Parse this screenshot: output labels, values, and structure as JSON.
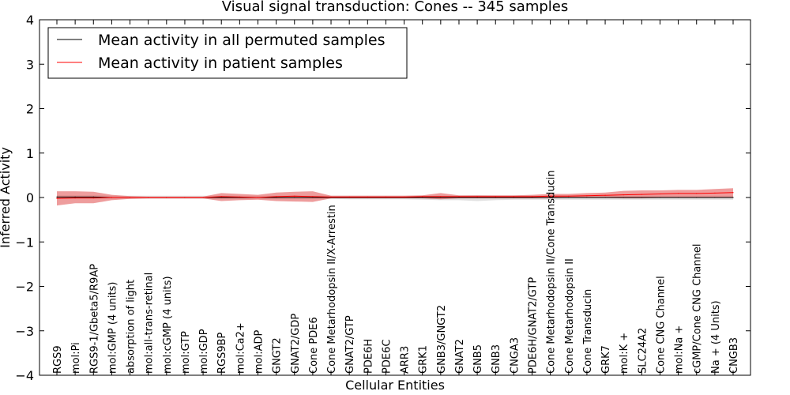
{
  "chart_data": {
    "type": "line",
    "title": "Visual signal transduction: Cones -- 345 samples",
    "xlabel": "Cellular Entities",
    "ylabel": "Inferred Activity",
    "ylim": [
      -4,
      4
    ],
    "yticks": [
      -4,
      -3,
      -2,
      -1,
      0,
      1,
      2,
      3,
      4
    ],
    "ytick_labels": [
      "−4",
      "−3",
      "−2",
      "−1",
      "0",
      "1",
      "2",
      "3",
      "4"
    ],
    "legend_position": "top-left",
    "categories": [
      "RGS9",
      "mol:Pi",
      "RGS9-1/Gbeta5/R9AP",
      "mol:GMP (4 units)",
      "absorption of light",
      "mol:all-trans-retinal",
      "mol:cGMP (4 units)",
      "mol:GTP",
      "mol:GDP",
      "RGS9BP",
      "mol:Ca2+",
      "mol:ADP",
      "GNGT2",
      "GNAT2/GDP",
      "Cone PDE6",
      "Cone Metarhodopsin II/X-Arrestin",
      "GNAT2/GTP",
      "PDE6H",
      "PDE6C",
      "ARR3",
      "GRK1",
      "GNB3/GNGT2",
      "GNAT2",
      "GNB5",
      "GNB3",
      "CNGA3",
      "PDE6H/GNAT2/GTP",
      "Cone Metarhodopsin II/Cone Transducin",
      "Cone Metarhodopsin II",
      "Cone Transducin",
      "GRK7",
      "mol:K +",
      "SLC24A2",
      "Cone CNG Channel",
      "mol:Na +",
      "cGMP/Cone CNG Channel",
      "Na + (4 Units)",
      "CNGB3"
    ],
    "series": [
      {
        "name": "Mean activity in all permuted samples",
        "color": "#000000",
        "band_color": "#c8c8c8",
        "values": [
          0.01,
          0.01,
          0.01,
          0.0,
          0.0,
          0.0,
          0.0,
          0.0,
          0.0,
          0.0,
          0.0,
          0.0,
          0.0,
          0.0,
          0.0,
          0.0,
          0.0,
          0.0,
          0.0,
          0.0,
          0.0,
          0.0,
          0.0,
          0.0,
          0.0,
          0.0,
          0.0,
          0.0,
          0.0,
          0.0,
          0.0,
          0.0,
          0.0,
          0.0,
          0.0,
          0.0,
          0.0,
          0.0
        ],
        "lower": [
          -0.03,
          -0.03,
          -0.03,
          -0.03,
          -0.03,
          -0.03,
          -0.03,
          -0.03,
          -0.03,
          -0.03,
          -0.03,
          -0.03,
          -0.03,
          -0.03,
          -0.03,
          -0.03,
          -0.04,
          -0.04,
          -0.04,
          -0.04,
          -0.05,
          -0.06,
          -0.06,
          -0.08,
          -0.06,
          -0.05,
          -0.05,
          -0.05,
          -0.05,
          -0.05,
          -0.05,
          -0.05,
          -0.05,
          -0.05,
          -0.05,
          -0.05,
          -0.05,
          -0.05
        ],
        "upper": [
          0.05,
          0.05,
          0.05,
          0.04,
          0.04,
          0.04,
          0.04,
          0.04,
          0.04,
          0.04,
          0.04,
          0.04,
          0.04,
          0.04,
          0.04,
          0.04,
          0.04,
          0.04,
          0.04,
          0.04,
          0.04,
          0.04,
          0.04,
          0.05,
          0.04,
          0.04,
          0.04,
          0.04,
          0.04,
          0.04,
          0.04,
          0.04,
          0.04,
          0.04,
          0.04,
          0.04,
          0.04,
          0.04
        ]
      },
      {
        "name": "Mean activity in patient samples",
        "color": "#ff0000",
        "band_color": "#e35c5c",
        "values": [
          -0.02,
          -0.01,
          -0.01,
          0.0,
          0.0,
          0.0,
          0.0,
          0.0,
          0.0,
          0.02,
          0.01,
          0.0,
          0.02,
          0.03,
          0.02,
          0.01,
          0.01,
          0.01,
          0.01,
          0.01,
          0.02,
          0.02,
          0.02,
          0.02,
          0.02,
          0.02,
          0.02,
          0.03,
          0.03,
          0.04,
          0.05,
          0.06,
          0.07,
          0.08,
          0.09,
          0.09,
          0.1,
          0.11
        ],
        "lower": [
          -0.18,
          -0.13,
          -0.13,
          -0.06,
          -0.03,
          -0.02,
          -0.02,
          -0.02,
          -0.02,
          -0.08,
          -0.06,
          -0.05,
          -0.08,
          -0.09,
          -0.1,
          -0.02,
          -0.02,
          -0.02,
          -0.02,
          -0.02,
          -0.02,
          -0.04,
          -0.02,
          -0.02,
          -0.02,
          -0.02,
          -0.02,
          -0.02,
          -0.01,
          -0.01,
          -0.01,
          -0.02,
          -0.02,
          -0.01,
          -0.01,
          -0.01,
          -0.01,
          -0.01
        ],
        "upper": [
          0.14,
          0.14,
          0.13,
          0.06,
          0.03,
          0.02,
          0.02,
          0.02,
          0.02,
          0.1,
          0.08,
          0.06,
          0.11,
          0.13,
          0.14,
          0.04,
          0.04,
          0.04,
          0.04,
          0.04,
          0.05,
          0.1,
          0.05,
          0.05,
          0.05,
          0.05,
          0.06,
          0.08,
          0.08,
          0.1,
          0.11,
          0.15,
          0.16,
          0.16,
          0.17,
          0.17,
          0.19,
          0.21
        ]
      }
    ]
  }
}
